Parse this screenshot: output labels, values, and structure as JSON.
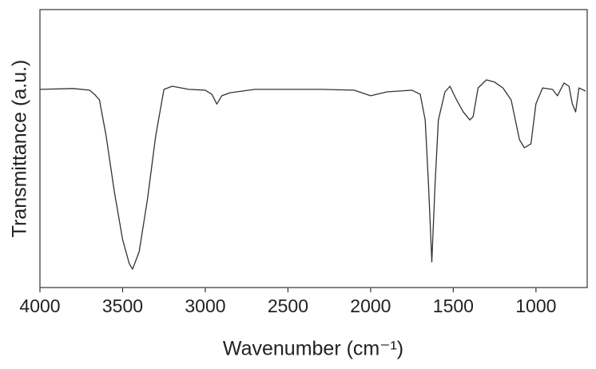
{
  "chart_data": {
    "type": "line",
    "x_label": "Wavenumber (cm⁻¹)",
    "y_label": "Transmittance (a.u.)",
    "x": [
      4000,
      3800,
      3700,
      3670,
      3640,
      3600,
      3550,
      3500,
      3460,
      3440,
      3400,
      3350,
      3300,
      3250,
      3200,
      3100,
      3000,
      2960,
      2930,
      2900,
      2850,
      2700,
      2300,
      2100,
      2000,
      1900,
      1750,
      1700,
      1670,
      1650,
      1630,
      1610,
      1590,
      1550,
      1520,
      1480,
      1440,
      1400,
      1380,
      1350,
      1300,
      1250,
      1200,
      1150,
      1100,
      1070,
      1030,
      1000,
      960,
      900,
      870,
      830,
      800,
      780,
      760,
      740,
      700
    ],
    "y": [
      71.3,
      71.6,
      71,
      69.5,
      67.5,
      54.6,
      34.5,
      17.2,
      8.6,
      6.6,
      12.9,
      31.6,
      54.6,
      71.3,
      72.4,
      71.3,
      71,
      69.5,
      66,
      69,
      70.1,
      71.3,
      71.3,
      71,
      69,
      70.4,
      71,
      69.5,
      60.3,
      37.4,
      9.2,
      37.4,
      60.3,
      70.4,
      72.4,
      67.5,
      63.2,
      60.3,
      61.5,
      71.8,
      74.7,
      73.9,
      71.8,
      67.5,
      53.2,
      50.3,
      51.7,
      66.1,
      71.8,
      71.3,
      69,
      73.6,
      72.4,
      66,
      63.2,
      71.8,
      70.7
    ],
    "color": "#333333",
    "xlim": [
      4000,
      690
    ],
    "xticks": [
      4000,
      3500,
      3000,
      2500,
      2000,
      1500,
      1000
    ],
    "ylim": [
      0,
      100
    ]
  }
}
